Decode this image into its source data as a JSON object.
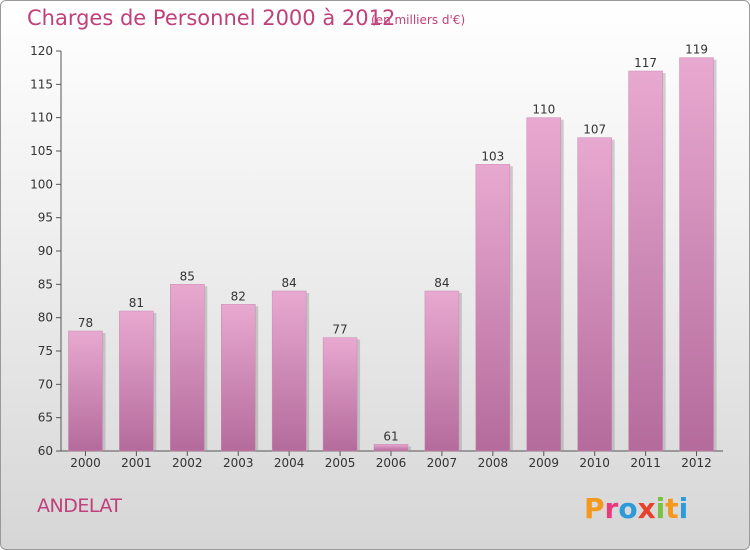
{
  "header": {
    "title": "Charges de Personnel 2000 à 2012",
    "subtitle": "(en milliers d'€)"
  },
  "footer": {
    "commune": "ANDELAT",
    "logo_text": "Proxiti",
    "logo_colors": [
      "#f39a1e",
      "#e83a7d",
      "#2d9bd8",
      "#e8402a",
      "#7cc242",
      "#f39a1e",
      "#2d9bd8"
    ]
  },
  "chart_data": {
    "type": "bar",
    "categories": [
      "2000",
      "2001",
      "2002",
      "2003",
      "2004",
      "2005",
      "2006",
      "2007",
      "2008",
      "2009",
      "2010",
      "2011",
      "2012"
    ],
    "values": [
      78,
      81,
      85,
      82,
      84,
      77,
      61,
      84,
      103,
      110,
      107,
      117,
      119
    ],
    "ylim": [
      60,
      120
    ],
    "yticks": [
      60,
      65,
      70,
      75,
      80,
      85,
      90,
      95,
      100,
      105,
      110,
      115,
      120
    ],
    "grid": false,
    "bar_color": "#d88ab8"
  }
}
